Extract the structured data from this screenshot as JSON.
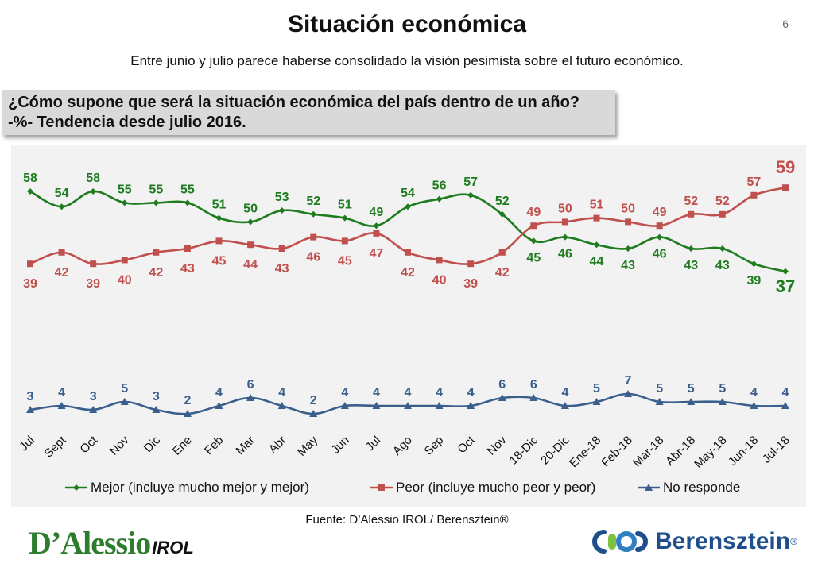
{
  "header": {
    "title": "Situación económica",
    "slide_number": "6",
    "subtitle": "Entre junio y julio parece haberse consolidado la visión pesimista sobre el futuro económico."
  },
  "question": {
    "line1": "¿Cómo supone que será la situación económica del país dentro de un año?",
    "line2": "-%- Tendencia desde julio 2016."
  },
  "footer": {
    "source": "Fuente: D’Alessio IROL/ Berensztein®",
    "logo_left_main": "D’Alessio",
    "logo_left_sub": "IROL",
    "logo_right": "Berensztein",
    "logo_right_reg": "®"
  },
  "chart_data": {
    "type": "line",
    "categories": [
      "Jul",
      "Sept",
      "Oct",
      "Nov",
      "Dic",
      "Ene",
      "Feb",
      "Mar",
      "Abr",
      "May",
      "Jun",
      "Jul",
      "Ago",
      "Sep",
      "Oct",
      "Nov",
      "18-Dic",
      "20-Dic",
      "Ene-18",
      "Feb-18",
      "Mar-18",
      "Abr-18",
      "May-18",
      "Jun-18",
      "Jul-18"
    ],
    "legend_position": "bottom",
    "grid": false,
    "series": [
      {
        "name": "Mejor (incluye mucho mejor y mejor)",
        "color": "#1e7b1e",
        "marker": "diamond",
        "values": [
          58,
          54,
          58,
          55,
          55,
          55,
          51,
          50,
          53,
          52,
          51,
          49,
          54,
          56,
          57,
          52,
          45,
          46,
          44,
          43,
          46,
          43,
          43,
          39,
          37
        ]
      },
      {
        "name": "Peor (incluye mucho peor y peor)",
        "color": "#c0504d",
        "marker": "square",
        "values": [
          39,
          42,
          39,
          40,
          42,
          43,
          45,
          44,
          43,
          46,
          45,
          47,
          42,
          40,
          39,
          42,
          49,
          50,
          51,
          50,
          49,
          52,
          52,
          57,
          59
        ]
      },
      {
        "name": "No responde",
        "color": "#3a5f8c",
        "marker": "triangle",
        "values": [
          3,
          4,
          3,
          5,
          3,
          2,
          4,
          6,
          4,
          2,
          4,
          4,
          4,
          4,
          4,
          6,
          6,
          4,
          5,
          7,
          5,
          5,
          5,
          4,
          4
        ]
      }
    ]
  }
}
